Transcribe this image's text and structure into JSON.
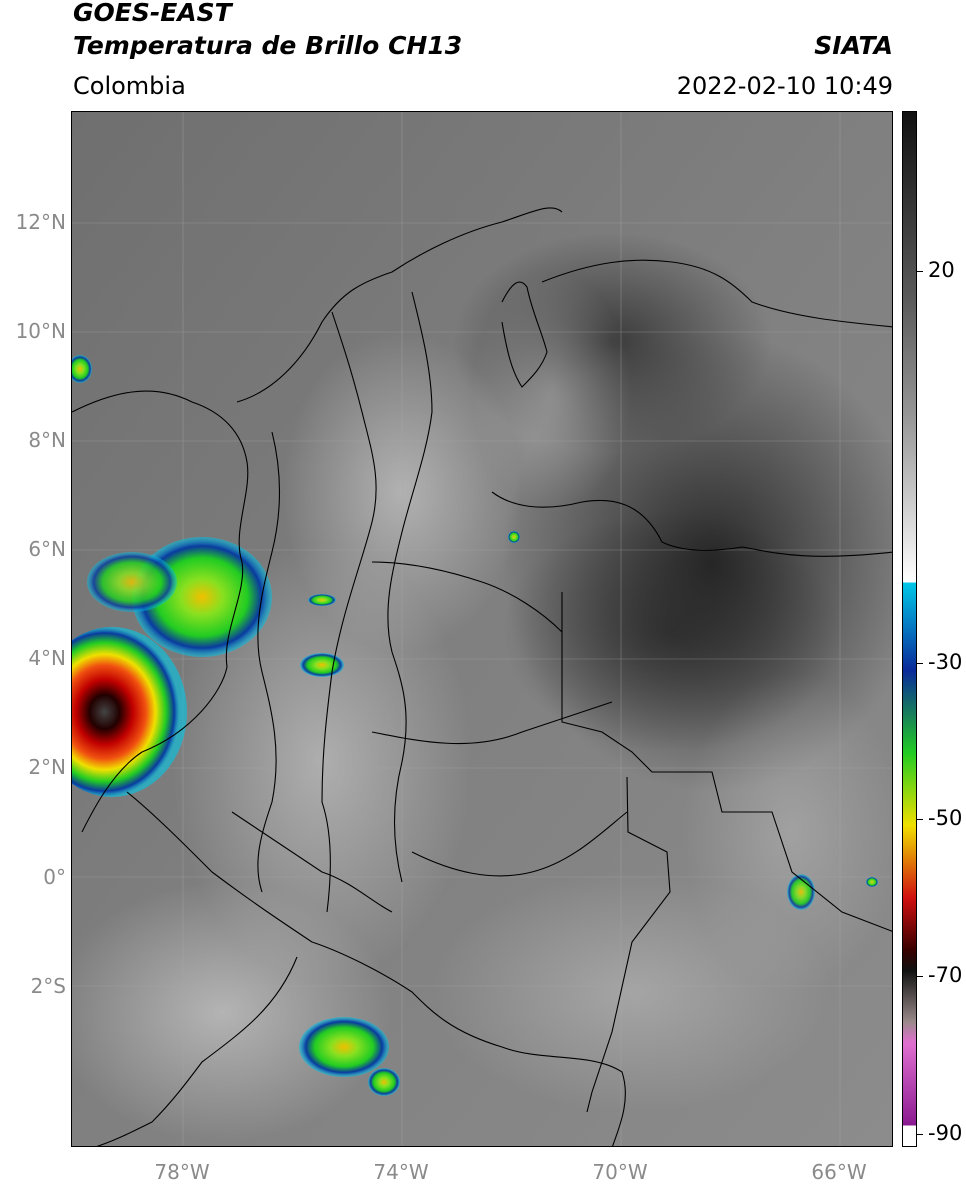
{
  "header": {
    "satellite": "GOES-EAST",
    "product": "Temperatura de Brillo CH13",
    "region": "Colombia",
    "source": "SIATA",
    "datetime": "2022-02-10 10:49"
  },
  "map": {
    "lat_labels": [
      "12°N",
      "10°N",
      "8°N",
      "6°N",
      "4°N",
      "2°N",
      "0°",
      "2°S"
    ],
    "lon_labels": [
      "78°W",
      "74°W",
      "70°W",
      "66°W"
    ],
    "lat_values": [
      12,
      10,
      8,
      6,
      4,
      2,
      0,
      -2
    ],
    "lon_values": [
      -78,
      -74,
      -70,
      -66
    ],
    "extent": {
      "lon_min": -80,
      "lon_max": -65,
      "lat_min": -5,
      "lat_max": 14
    }
  },
  "colorbar": {
    "ticks": [
      {
        "label": "20",
        "value": 20
      },
      {
        "label": "-30",
        "value": -30
      },
      {
        "label": "-50",
        "value": -50
      },
      {
        "label": "-70",
        "value": -70
      },
      {
        "label": "-90",
        "value": -90
      }
    ],
    "range": [
      -92,
      40
    ],
    "colors": {
      "warm": "#111111",
      "neutral": "#ffffff",
      "cyan": "#00c8e8",
      "blue": "#0a2a9a",
      "green": "#22cc22",
      "yellow": "#f0e000",
      "red": "#d01010",
      "darkred": "#3a0000",
      "pink": "#e070d0",
      "purple": "#8a1a90"
    }
  }
}
